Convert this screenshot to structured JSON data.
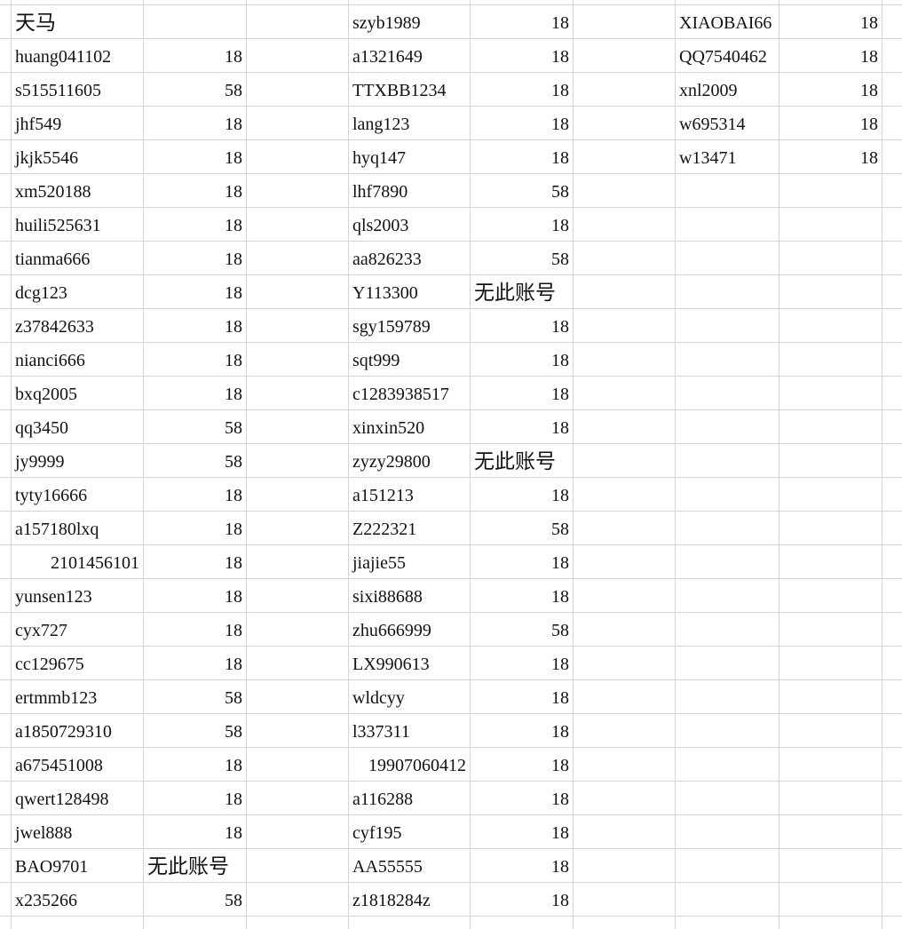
{
  "sheet": {
    "blocks": [
      {
        "rows": [
          [
            "天马"
          ],
          [
            "huang041102",
            18
          ],
          [
            "s515511605",
            58
          ],
          [
            "jhf549",
            18
          ],
          [
            "jkjk5546",
            18
          ],
          [
            "xm520188",
            18
          ],
          [
            "huili525631",
            18
          ],
          [
            "tianma666",
            18
          ],
          [
            "dcg123",
            18
          ],
          [
            "z37842633",
            18
          ],
          [
            "nianci666",
            18
          ],
          [
            "bxq2005",
            18
          ],
          [
            "qq3450",
            58
          ],
          [
            "jy9999",
            58
          ],
          [
            "tyty16666",
            18
          ],
          [
            "a157180lxq",
            18
          ],
          [
            2101456101,
            18
          ],
          [
            "yunsen123",
            18
          ],
          [
            "cyx727",
            18
          ],
          [
            "cc129675",
            18
          ],
          [
            "ertmmb123",
            58
          ],
          [
            "a1850729310",
            58
          ],
          [
            "a675451008",
            18
          ],
          [
            "qwert128498",
            18
          ],
          [
            "jwel888",
            18
          ],
          [
            "BAO9701",
            "无此账号"
          ],
          [
            "x235266",
            58
          ]
        ]
      },
      {
        "rows": [
          [
            "szyb1989",
            18
          ],
          [
            "a1321649",
            18
          ],
          [
            "TTXBB1234",
            18
          ],
          [
            "lang123",
            18
          ],
          [
            "hyq147",
            18
          ],
          [
            "lhf7890",
            58
          ],
          [
            "qls2003",
            18
          ],
          [
            "aa826233",
            58
          ],
          [
            "Y113300",
            "无此账号"
          ],
          [
            "sgy159789",
            18
          ],
          [
            "sqt999",
            18
          ],
          [
            "c1283938517",
            18
          ],
          [
            "xinxin520",
            18
          ],
          [
            "zyzy29800",
            "无此账号"
          ],
          [
            "a151213",
            18
          ],
          [
            "Z222321",
            58
          ],
          [
            "jiajie55",
            18
          ],
          [
            "sixi88688",
            18
          ],
          [
            "zhu666999",
            58
          ],
          [
            "LX990613",
            18
          ],
          [
            "wldcyy",
            18
          ],
          [
            "l337311",
            18
          ],
          [
            19907060412,
            18
          ],
          [
            "a116288",
            18
          ],
          [
            "cyf195",
            18
          ],
          [
            "AA55555",
            18
          ],
          [
            "z1818284z",
            18
          ]
        ]
      },
      {
        "rows": [
          [
            "XIAOBAI66",
            18
          ],
          [
            "QQ7540462",
            18
          ],
          [
            "xnl2009",
            18
          ],
          [
            "w695314",
            18
          ],
          [
            "w13471",
            18
          ]
        ]
      }
    ]
  }
}
